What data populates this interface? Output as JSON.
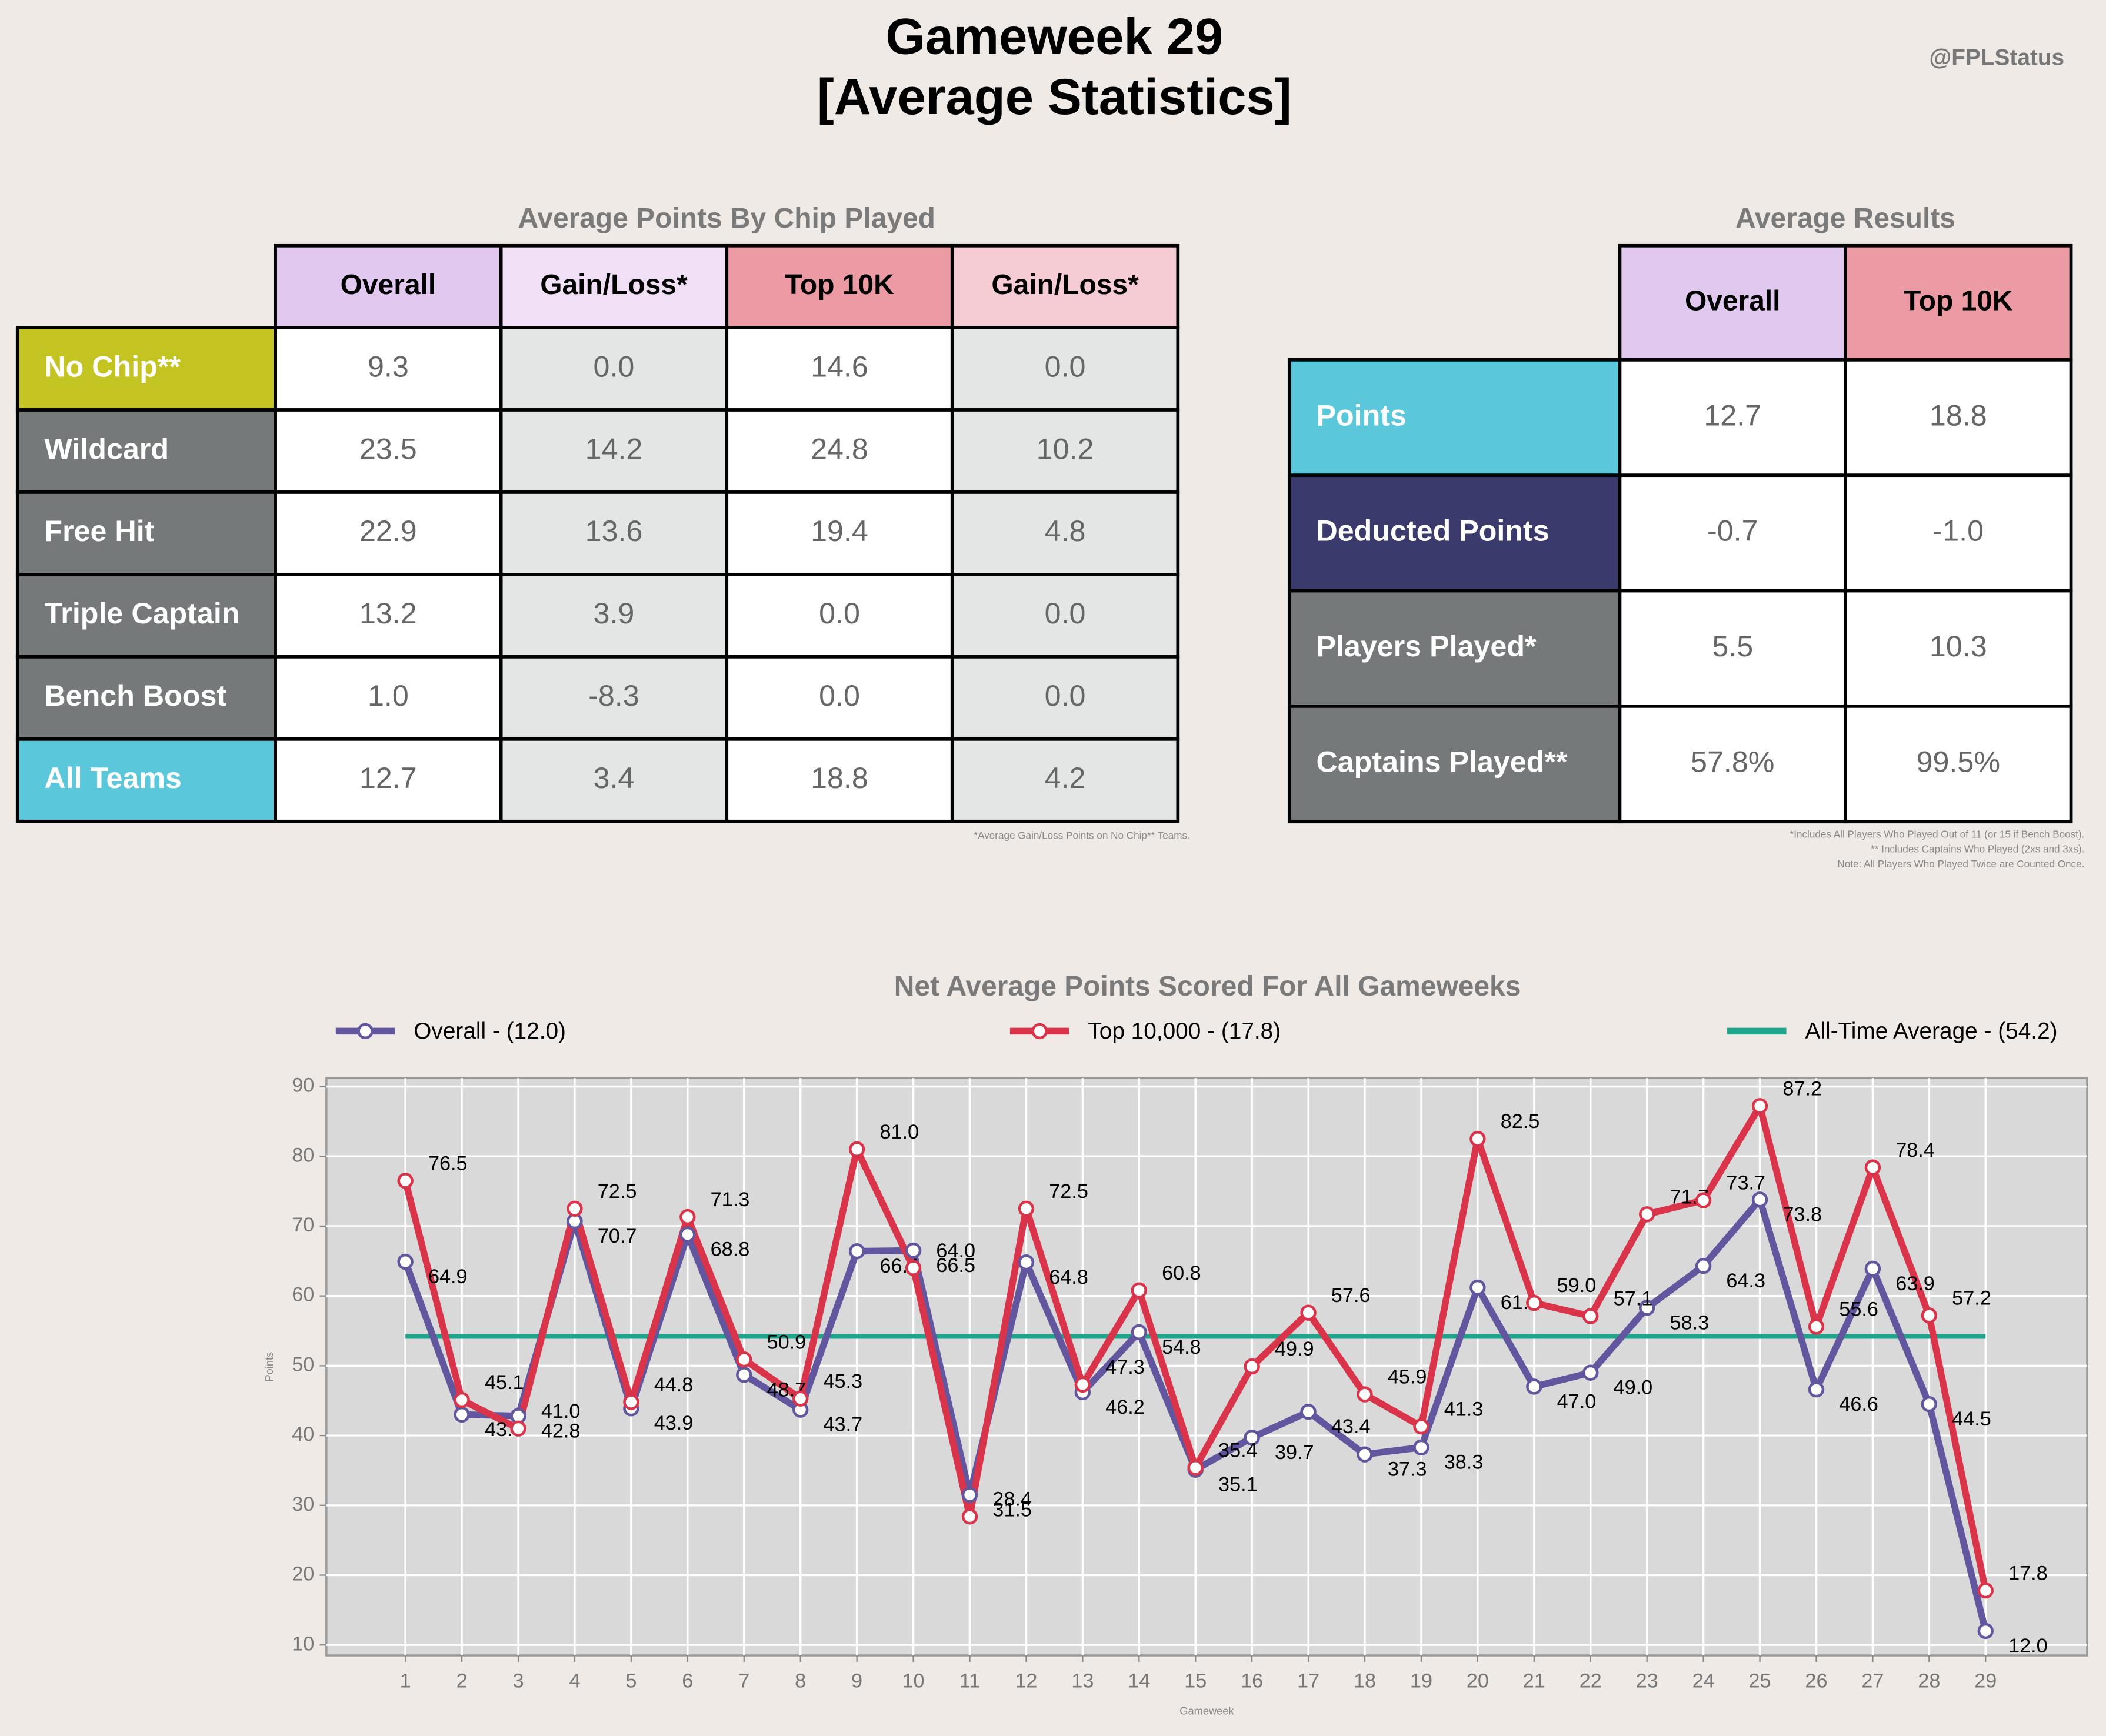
{
  "header": {
    "title_line1": "Gameweek 29",
    "title_line2": "[Average Statistics]",
    "handle": "@FPLStatus"
  },
  "chip_table": {
    "title": "Average Points By Chip Played",
    "columns": [
      "Overall",
      "Gain/Loss*",
      "Top 10K",
      "Gain/Loss*"
    ],
    "column_colors": [
      "#e0c8ef",
      "#f1e0f5",
      "#ec9aa3",
      "#f5ccd3"
    ],
    "cell_colors": [
      "#ffffff",
      "#e4e6e6",
      "#ffffff",
      "#e4e6e6"
    ],
    "rows": [
      {
        "label": "No Chip**",
        "color": "#c3c322",
        "cells": [
          "9.3",
          "0.0",
          "14.6",
          "0.0"
        ]
      },
      {
        "label": "Wildcard",
        "color": "#76797a",
        "cells": [
          "23.5",
          "14.2",
          "24.8",
          "10.2"
        ]
      },
      {
        "label": "Free Hit",
        "color": "#76797a",
        "cells": [
          "22.9",
          "13.6",
          "19.4",
          "4.8"
        ]
      },
      {
        "label": "Triple Captain",
        "color": "#76797a",
        "cells": [
          "13.2",
          "3.9",
          "0.0",
          "0.0"
        ]
      },
      {
        "label": "Bench Boost",
        "color": "#76797a",
        "cells": [
          "1.0",
          "-8.3",
          "0.0",
          "0.0"
        ]
      },
      {
        "label": "All Teams",
        "color": "#5bc7db",
        "cells": [
          "12.7",
          "3.4",
          "18.8",
          "4.2"
        ]
      }
    ],
    "footnote": "*Average Gain/Loss Points on No Chip** Teams."
  },
  "results_table": {
    "title": "Average Results",
    "columns": [
      "Overall",
      "Top 10K"
    ],
    "column_colors": [
      "#e0c8ef",
      "#ec9aa3"
    ],
    "rows": [
      {
        "label": "Points",
        "color": "#5bc7db",
        "cells": [
          "12.7",
          "18.8"
        ]
      },
      {
        "label": "Deducted Points",
        "color": "#3b3a6c",
        "cells": [
          "-0.7",
          "-1.0"
        ]
      },
      {
        "label": "Players Played*",
        "color": "#76797a",
        "cells": [
          "5.5",
          "10.3"
        ]
      },
      {
        "label": "Captains Played**",
        "color": "#76797a",
        "cells": [
          "57.8%",
          "99.5%"
        ]
      }
    ],
    "footnotes": [
      "*Includes All Players Who Played Out of 11 (or 15 if Bench Boost).",
      "** Includes Captains Who Played (2xs and 3xs).",
      "Note: All Players Who Played Twice are Counted Once."
    ]
  },
  "chart_data": {
    "type": "line",
    "title": "Net Average Points Scored For All Gameweeks",
    "x_label": "Gameweek",
    "y_label": "Points",
    "x": [
      1,
      2,
      3,
      4,
      5,
      6,
      7,
      8,
      9,
      10,
      11,
      12,
      13,
      14,
      15,
      16,
      17,
      18,
      19,
      20,
      21,
      22,
      23,
      24,
      25,
      26,
      27,
      28,
      29
    ],
    "xlim": [
      -0.4,
      30.8
    ],
    "xticks": [
      1,
      2,
      3,
      4,
      5,
      6,
      7,
      8,
      9,
      10,
      11,
      12,
      13,
      14,
      15,
      16,
      17,
      18,
      19,
      20,
      21,
      22,
      23,
      24,
      25,
      26,
      27,
      28,
      29
    ],
    "ylim": [
      8.5,
      91.2
    ],
    "yticks": [
      10,
      20,
      30,
      40,
      50,
      60,
      70,
      80,
      90
    ],
    "grid": true,
    "series": [
      {
        "name": "Overall - (12.0)",
        "color": "#62569e",
        "values": [
          64.9,
          43.0,
          42.8,
          70.7,
          43.9,
          68.8,
          48.7,
          43.7,
          66.4,
          66.5,
          31.5,
          64.8,
          46.2,
          54.8,
          35.1,
          39.7,
          43.4,
          37.3,
          38.3,
          61.2,
          47.0,
          49.0,
          58.3,
          64.3,
          73.8,
          46.6,
          63.9,
          44.5,
          12.0
        ],
        "value_labels": [
          "64.9",
          "43.0",
          "42.8",
          "70.7",
          "43.9",
          "68.8",
          "48.7",
          "43.7",
          "66.4",
          "66.5",
          "31.5",
          "64.8",
          "46.2",
          "54.8",
          "35.1",
          "39.7",
          "43.4",
          "37.3",
          "38.3",
          "61.2",
          "47.0",
          "49.0",
          "58.3",
          "64.3",
          "73.8",
          "46.6",
          "63.9",
          "44.5",
          "12.0"
        ]
      },
      {
        "name": "Top 10,000 - (17.8)",
        "color": "#d9344a",
        "values": [
          76.5,
          45.1,
          41.0,
          72.5,
          44.8,
          71.3,
          50.9,
          45.3,
          81.0,
          64.0,
          28.4,
          72.5,
          47.3,
          60.8,
          35.4,
          49.9,
          57.6,
          45.9,
          41.3,
          82.5,
          59.0,
          57.1,
          71.7,
          73.7,
          87.2,
          55.6,
          78.4,
          57.2,
          17.8
        ],
        "value_labels": [
          "76.5",
          "45.1",
          "41.0",
          "72.5",
          "44.8",
          "71.3",
          "50.9",
          "45.3",
          "81.0",
          "64.0",
          "28.4",
          "72.5",
          "47.3",
          "60.8",
          "35.4",
          "49.9",
          "57.6",
          "45.9",
          "41.3",
          "82.5",
          "59.0",
          "57.1",
          "71.7",
          "73.7",
          "87.2",
          "55.6",
          "78.4",
          "57.2",
          "17.8"
        ]
      }
    ],
    "average": {
      "name": "All-Time Average - (54.2)",
      "value": 54.2,
      "color": "#1fa58b",
      "x": [
        1,
        29
      ]
    }
  }
}
